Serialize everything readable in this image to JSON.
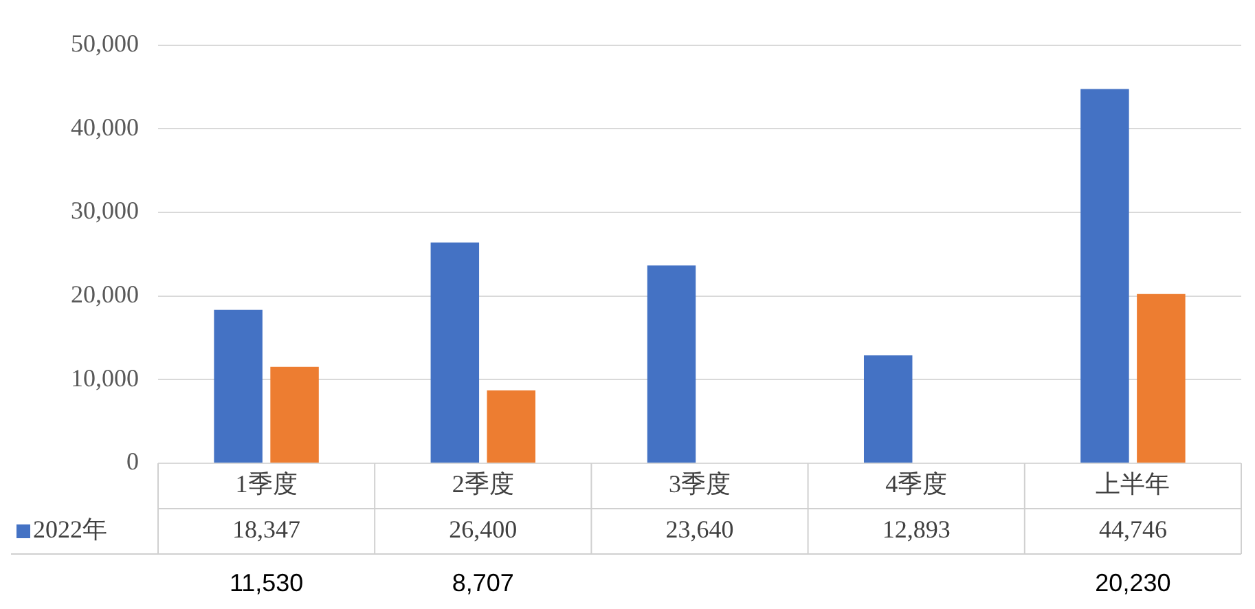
{
  "chart_data": {
    "type": "bar",
    "categories": [
      "1季度",
      "2季度",
      "3季度",
      "4季度",
      "上半年"
    ],
    "series": [
      {
        "name": "2022年",
        "color": "#4472c4",
        "values": [
          18347,
          26400,
          23640,
          12893,
          44746
        ],
        "value_labels": [
          "18,347",
          "26,400",
          "23,640",
          "12,893",
          "44,746"
        ]
      },
      {
        "color": "#ed7d31",
        "values": [
          11530,
          8707,
          null,
          null,
          20230
        ],
        "value_labels": [
          "11,530",
          "8,707",
          null,
          null,
          "20,230"
        ]
      }
    ],
    "ylim": [
      0,
      50000
    ],
    "yticks": [
      0,
      {
        "value": 10000,
        "label": "10,000"
      },
      {
        "value": 20000,
        "label": "20,000"
      },
      {
        "value": 30000,
        "label": "30,000"
      },
      {
        "value": 40000,
        "label": "40,000"
      },
      {
        "value": 50000,
        "label": "50,000"
      }
    ],
    "grid": "y",
    "legend": "bottom"
  }
}
